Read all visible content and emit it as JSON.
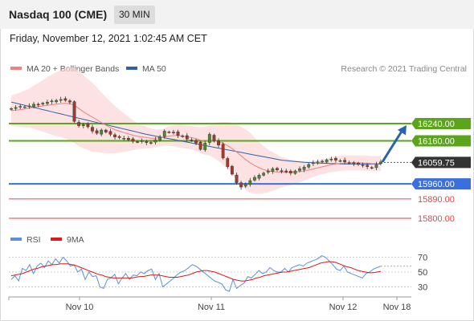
{
  "header": {
    "title": "Nasdaq 100 (CME)",
    "timeframe": "30 MIN",
    "datetime": "Friday, November 12, 2021 1:02:45 AM CET"
  },
  "legend": {
    "ma20": "MA 20 + Bollinger Bands",
    "ma50": "MA 50",
    "credit": "Research © 2021 Trading Central",
    "rsi": "RSI",
    "ma9": "9MA"
  },
  "colors": {
    "ma20": "#f08080",
    "ma50": "#3060a8",
    "resistance": "#5aa51a",
    "support": "#3a6fe0",
    "target": "#f04040",
    "last": "#333333",
    "rsi": "#5b8fe0",
    "rsi_ma": "#e01818",
    "band": "#fbd6d6",
    "arrow": "#2a62b0"
  },
  "chart_data": [
    {
      "type": "candlestick",
      "ylim": [
        15780,
        16410
      ],
      "x_labels": [
        "Nov 10",
        "Nov 11",
        "Nov 12",
        "Nov 18"
      ],
      "price_levels": [
        {
          "value": 16240,
          "label": "16240.00",
          "kind": "resistance"
        },
        {
          "value": 16160,
          "label": "16160.00",
          "kind": "resistance"
        },
        {
          "value": 16059.75,
          "label": "16059.75",
          "kind": "last"
        },
        {
          "value": 15960,
          "label": "15960.00",
          "kind": "support"
        },
        {
          "value": 15890,
          "label": "15890.00",
          "kind": "target"
        },
        {
          "value": 15800,
          "label": "15800.00",
          "kind": "target"
        }
      ],
      "close_path": [
        16310,
        16315,
        16320,
        16318,
        16322,
        16330,
        16326,
        16335,
        16340,
        16345,
        16348,
        16352,
        16348,
        16340,
        16250,
        16230,
        16235,
        16225,
        16205,
        16195,
        16210,
        16200,
        16190,
        16178,
        16175,
        16172,
        16165,
        16158,
        16155,
        16160,
        16152,
        16150,
        16165,
        16178,
        16205,
        16200,
        16198,
        16185,
        16182,
        16168,
        16162,
        16150,
        16120,
        16150,
        16190,
        16160,
        16140,
        16080,
        16040,
        16005,
        15965,
        15945,
        15960,
        15975,
        15990,
        16000,
        16010,
        16020,
        16030,
        16025,
        16020,
        16015,
        16010,
        16020,
        16030,
        16038,
        16050,
        16058,
        16062,
        16065,
        16072,
        16075,
        16070,
        16068,
        16062,
        16058,
        16052,
        16050,
        16045,
        16040,
        16035,
        16050,
        16062
      ],
      "ma20": [
        16300,
        16302,
        16305,
        16308,
        16312,
        16316,
        16319,
        16322,
        16325,
        16328,
        16330,
        16332,
        16334,
        16332,
        16325,
        16310,
        16295,
        16282,
        16270,
        16258,
        16245,
        16233,
        16222,
        16212,
        16205,
        16198,
        16192,
        16186,
        16181,
        16178,
        16175,
        16172,
        16172,
        16174,
        16178,
        16182,
        16184,
        16184,
        16182,
        16179,
        16175,
        16170,
        16163,
        16160,
        16162,
        16160,
        16156,
        16148,
        16138,
        16124,
        16108,
        16090,
        16073,
        16058,
        16045,
        16035,
        16026,
        16020,
        16017,
        16015,
        16014,
        16014,
        16014,
        16015,
        16017,
        16020,
        16024,
        16029,
        16034,
        16039,
        16044,
        16049,
        16052,
        16055,
        16057,
        16058,
        16058,
        16058,
        16057,
        16056,
        16054,
        16054,
        16055
      ],
      "ma50": [
        16340,
        16335,
        16330,
        16325,
        16320,
        16315,
        16310,
        16305,
        16300,
        16295,
        16290,
        16285,
        16280,
        16275,
        16270,
        16265,
        16260,
        16255,
        16250,
        16245,
        16240,
        16235,
        16230,
        16225,
        16220,
        16215,
        16210,
        16205,
        16200,
        16195,
        16190,
        16186,
        16182,
        16178,
        16174,
        16170,
        16166,
        16162,
        16158,
        16154,
        16150,
        16146,
        16142,
        16138,
        16134,
        16130,
        16126,
        16122,
        16118,
        16114,
        16110,
        16106,
        16102,
        16098,
        16094,
        16090,
        16086,
        16082,
        16078,
        16074,
        16070,
        16068,
        16066,
        16064,
        16062,
        16060,
        16059,
        16058,
        16057,
        16056,
        16055,
        16054,
        16054,
        16053,
        16053,
        16052,
        16052,
        16052,
        16052,
        16052,
        16052,
        16052,
        16052
      ],
      "bb_width": [
        70,
        75,
        80,
        85,
        90,
        100,
        110,
        120,
        130,
        140,
        150,
        155,
        165,
        170,
        175,
        175,
        170,
        165,
        160,
        150,
        140,
        130,
        120,
        110,
        100,
        90,
        80,
        70,
        60,
        55,
        50,
        45,
        40,
        40,
        40,
        45,
        50,
        55,
        55,
        55,
        55,
        55,
        60,
        65,
        70,
        80,
        90,
        100,
        110,
        120,
        130,
        135,
        140,
        140,
        130,
        120,
        110,
        100,
        90,
        80,
        70,
        65,
        60,
        55,
        50,
        45,
        40,
        38,
        36,
        35,
        35,
        35,
        35,
        35,
        35,
        35,
        35,
        35,
        35,
        35,
        35,
        35,
        35
      ]
    },
    {
      "type": "line",
      "name": "RSI",
      "ylim": [
        18,
        80
      ],
      "y_ticks": [
        70,
        50,
        30
      ],
      "rsi": [
        40,
        45,
        38,
        55,
        52,
        60,
        48,
        58,
        62,
        56,
        65,
        60,
        68,
        62,
        70,
        65,
        58,
        60,
        50,
        54,
        40,
        50,
        44,
        45,
        30,
        28,
        40,
        42,
        47,
        34,
        42,
        48,
        40,
        46,
        45,
        50,
        48,
        52,
        54,
        40,
        48,
        30,
        34,
        38,
        42,
        47,
        50,
        52,
        56,
        60,
        58,
        54,
        50,
        46,
        42,
        38,
        36,
        34,
        26,
        24,
        40,
        28,
        32,
        35,
        44,
        42,
        47,
        52,
        48,
        50,
        56,
        52,
        50,
        50,
        55,
        50,
        56,
        58,
        60,
        58,
        62,
        64,
        66,
        68,
        72,
        70,
        65,
        60,
        54,
        52,
        58,
        50,
        48,
        46,
        44,
        42,
        48,
        50,
        54,
        56,
        58
      ],
      "rsi_ma": [
        45,
        46,
        47,
        48,
        50,
        52,
        54,
        55,
        57,
        58,
        59,
        60,
        60,
        61,
        61,
        61,
        60,
        59,
        57,
        55,
        53,
        51,
        49,
        47,
        46,
        44,
        43,
        42,
        42,
        42,
        42,
        42,
        42,
        43,
        44,
        44,
        45,
        46,
        46,
        46,
        45,
        44,
        43,
        43,
        43,
        44,
        45,
        46,
        48,
        50,
        51,
        52,
        52,
        51,
        50,
        48,
        46,
        44,
        42,
        40,
        39,
        38,
        38,
        39,
        40,
        42,
        43,
        45,
        46,
        47,
        48,
        49,
        50,
        50,
        51,
        52,
        53,
        54,
        55,
        56,
        58,
        60,
        62,
        63,
        64,
        64,
        63,
        61,
        59,
        57,
        56,
        54,
        52,
        51,
        50,
        49,
        49,
        50,
        51
      ]
    }
  ]
}
